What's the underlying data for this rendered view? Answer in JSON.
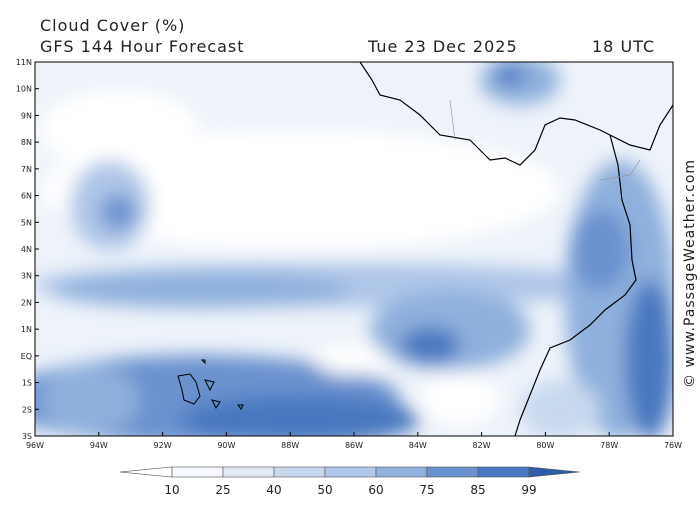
{
  "header": {
    "title": "Cloud Cover (%)",
    "subtitle": "GFS 144 Hour Forecast",
    "date": "Tue 23 Dec 2025",
    "time": "18 UTC"
  },
  "map": {
    "lat_labels": [
      "11N",
      "10N",
      "9N",
      "8N",
      "7N",
      "6N",
      "5N",
      "4N",
      "3N",
      "2N",
      "1N",
      "EQ",
      "1S",
      "2S",
      "3S"
    ],
    "lon_labels": [
      "96W",
      "94W",
      "92W",
      "90W",
      "88W",
      "86W",
      "84W",
      "82W",
      "80W",
      "78W",
      "76W"
    ]
  },
  "colorbar": {
    "ticks": [
      10,
      25,
      40,
      50,
      60,
      75,
      85,
      99
    ],
    "colors": [
      "#ffffff",
      "#f4f7fc",
      "#e1eaf6",
      "#c8d9ef",
      "#aec6e8",
      "#8fb0dd",
      "#6a92cf",
      "#4a78c0",
      "#2c5ca6"
    ]
  },
  "credit": "© www.PassageWeather.com"
}
